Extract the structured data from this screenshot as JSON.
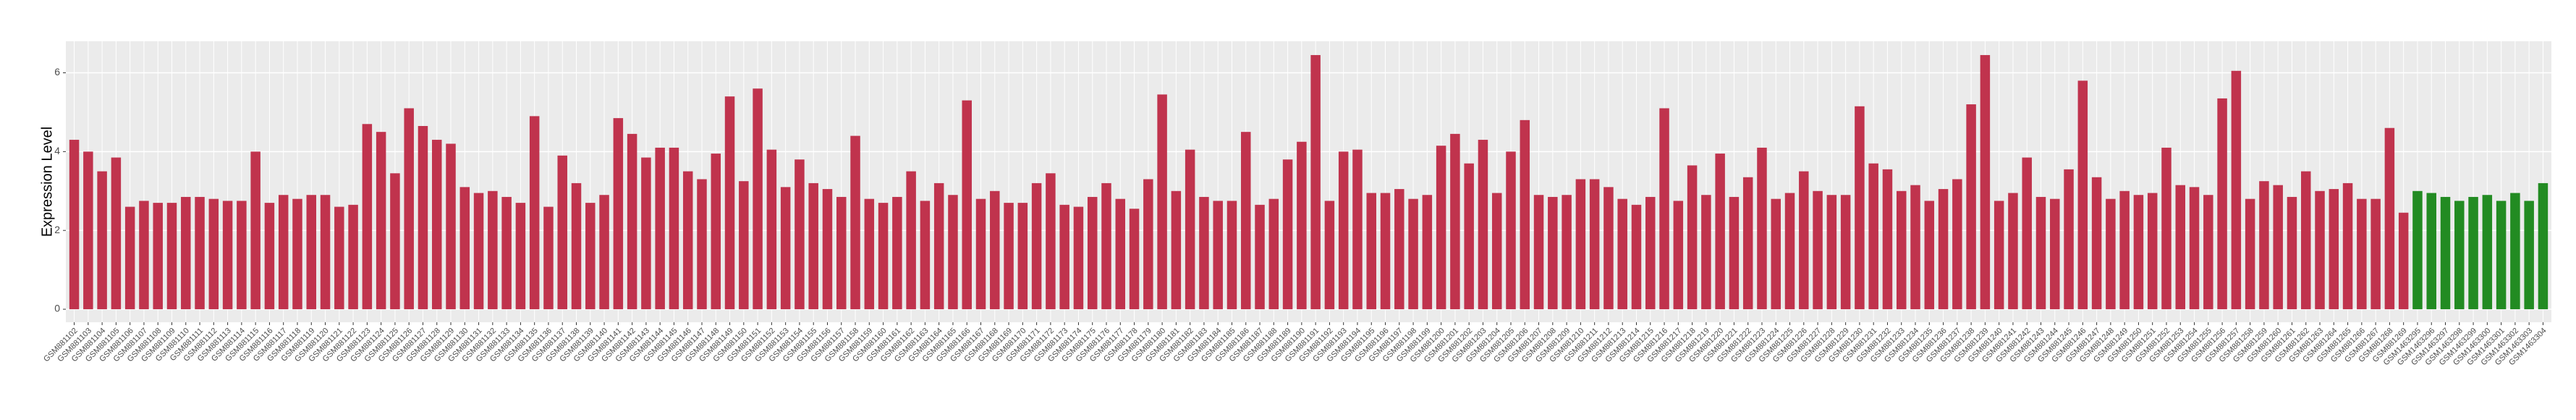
{
  "chart_data": {
    "type": "bar",
    "y_label": "Expression Level",
    "categories": [
      "GSM881102",
      "GSM881103",
      "GSM881104",
      "GSM881105",
      "GSM881106",
      "GSM881107",
      "GSM881108",
      "GSM881109",
      "GSM881110",
      "GSM881111",
      "GSM881112",
      "GSM881113",
      "GSM881114",
      "GSM881115",
      "GSM881116",
      "GSM881117",
      "GSM881118",
      "GSM881119",
      "GSM881120",
      "GSM881121",
      "GSM881122",
      "GSM881123",
      "GSM881124",
      "GSM881125",
      "GSM881126",
      "GSM881127",
      "GSM881128",
      "GSM881129",
      "GSM881130",
      "GSM881131",
      "GSM881132",
      "GSM881133",
      "GSM881134",
      "GSM881135",
      "GSM881136",
      "GSM881137",
      "GSM881138",
      "GSM881139",
      "GSM881140",
      "GSM881141",
      "GSM881142",
      "GSM881143",
      "GSM881144",
      "GSM881145",
      "GSM881146",
      "GSM881147",
      "GSM881148",
      "GSM881149",
      "GSM881150",
      "GSM881151",
      "GSM881152",
      "GSM881153",
      "GSM881154",
      "GSM881155",
      "GSM881156",
      "GSM881157",
      "GSM881158",
      "GSM881159",
      "GSM881160",
      "GSM881161",
      "GSM881162",
      "GSM881163",
      "GSM881164",
      "GSM881165",
      "GSM881166",
      "GSM881167",
      "GSM881168",
      "GSM881169",
      "GSM881170",
      "GSM881171",
      "GSM881172",
      "GSM881173",
      "GSM881174",
      "GSM881175",
      "GSM881176",
      "GSM881177",
      "GSM881178",
      "GSM881179",
      "GSM881180",
      "GSM881181",
      "GSM881182",
      "GSM881183",
      "GSM881184",
      "GSM881185",
      "GSM881186",
      "GSM881187",
      "GSM881188",
      "GSM881189",
      "GSM881190",
      "GSM881191",
      "GSM881192",
      "GSM881193",
      "GSM881194",
      "GSM881195",
      "GSM881196",
      "GSM881197",
      "GSM881198",
      "GSM881199",
      "GSM881200",
      "GSM881201",
      "GSM881202",
      "GSM881203",
      "GSM881204",
      "GSM881205",
      "GSM881206",
      "GSM881207",
      "GSM881208",
      "GSM881209",
      "GSM881210",
      "GSM881211",
      "GSM881212",
      "GSM881213",
      "GSM881214",
      "GSM881215",
      "GSM881216",
      "GSM881217",
      "GSM881218",
      "GSM881219",
      "GSM881220",
      "GSM881221",
      "GSM881222",
      "GSM881223",
      "GSM881224",
      "GSM881225",
      "GSM881226",
      "GSM881227",
      "GSM881228",
      "GSM881229",
      "GSM881230",
      "GSM881231",
      "GSM881232",
      "GSM881233",
      "GSM881234",
      "GSM881235",
      "GSM881236",
      "GSM881237",
      "GSM881238",
      "GSM881239",
      "GSM881240",
      "GSM881241",
      "GSM881242",
      "GSM881243",
      "GSM881244",
      "GSM881245",
      "GSM881246",
      "GSM881247",
      "GSM881248",
      "GSM881249",
      "GSM881250",
      "GSM881251",
      "GSM881252",
      "GSM881253",
      "GSM881254",
      "GSM881255",
      "GSM881256",
      "GSM881257",
      "GSM881258",
      "GSM881259",
      "GSM881260",
      "GSM881261",
      "GSM881262",
      "GSM881263",
      "GSM881264",
      "GSM881265",
      "GSM881266",
      "GSM881267",
      "GSM881268",
      "GSM881269",
      "GSM1463295",
      "GSM1463296",
      "GSM1463297",
      "GSM1463298",
      "GSM1463299",
      "GSM1463300",
      "GSM1463301",
      "GSM1463302",
      "GSM1463303",
      "GSM1463304"
    ],
    "values": [
      4.3,
      4.0,
      3.5,
      3.85,
      2.6,
      2.75,
      2.7,
      2.7,
      2.85,
      2.85,
      2.8,
      2.75,
      2.75,
      4.0,
      2.7,
      2.9,
      2.8,
      2.9,
      2.9,
      2.6,
      2.65,
      4.7,
      4.5,
      3.45,
      5.1,
      4.65,
      4.3,
      4.2,
      3.1,
      2.95,
      3.0,
      2.85,
      2.7,
      4.9,
      2.6,
      3.9,
      3.2,
      2.7,
      2.9,
      4.85,
      4.45,
      3.85,
      4.1,
      4.1,
      3.5,
      3.3,
      3.95,
      5.4,
      3.25,
      5.6,
      4.05,
      3.1,
      3.8,
      3.2,
      3.05,
      2.85,
      4.4,
      2.8,
      2.7,
      2.85,
      3.5,
      2.75,
      3.2,
      2.9,
      5.3,
      2.8,
      3.0,
      2.7,
      2.7,
      3.2,
      3.45,
      2.65,
      2.6,
      2.85,
      3.2,
      2.8,
      2.55,
      3.3,
      5.45,
      3.0,
      4.05,
      2.85,
      2.75,
      2.75,
      4.5,
      2.65,
      2.8,
      3.8,
      4.25,
      6.45,
      2.75,
      4.0,
      4.05,
      2.95,
      2.95,
      3.05,
      2.8,
      2.9,
      4.15,
      4.45,
      3.7,
      4.3,
      2.95,
      4.0,
      4.8,
      2.9,
      2.85,
      2.9,
      3.3,
      3.3,
      3.1,
      2.8,
      2.65,
      2.85,
      5.1,
      2.75,
      3.65,
      2.9,
      3.95,
      2.85,
      3.35,
      4.1,
      2.8,
      2.95,
      3.5,
      3.0,
      2.9,
      2.9,
      5.15,
      3.7,
      3.55,
      3.0,
      3.15,
      2.75,
      3.05,
      3.3,
      5.2,
      6.45,
      2.75,
      2.95,
      3.85,
      2.85,
      2.8,
      3.55,
      5.8,
      3.35,
      2.8,
      3.0,
      2.9,
      2.95,
      4.1,
      3.15,
      3.1,
      2.9,
      5.35,
      6.05,
      2.8,
      3.25,
      3.15,
      2.85,
      3.5,
      3.0,
      3.05,
      3.2,
      2.8,
      2.8,
      4.6,
      2.45,
      3.0,
      2.95,
      2.85,
      2.75,
      2.85,
      2.9,
      2.75,
      2.95,
      2.75,
      3.2
    ],
    "colors": [
      "#c0334d",
      "#c0334d",
      "#c0334d",
      "#c0334d",
      "#c0334d",
      "#c0334d",
      "#c0334d",
      "#c0334d",
      "#c0334d",
      "#c0334d",
      "#c0334d",
      "#c0334d",
      "#c0334d",
      "#c0334d",
      "#c0334d",
      "#c0334d",
      "#c0334d",
      "#c0334d",
      "#c0334d",
      "#c0334d",
      "#c0334d",
      "#c0334d",
      "#c0334d",
      "#c0334d",
      "#c0334d",
      "#c0334d",
      "#c0334d",
      "#c0334d",
      "#c0334d",
      "#c0334d",
      "#c0334d",
      "#c0334d",
      "#c0334d",
      "#c0334d",
      "#c0334d",
      "#c0334d",
      "#c0334d",
      "#c0334d",
      "#c0334d",
      "#c0334d",
      "#c0334d",
      "#c0334d",
      "#c0334d",
      "#c0334d",
      "#c0334d",
      "#c0334d",
      "#c0334d",
      "#c0334d",
      "#c0334d",
      "#c0334d",
      "#c0334d",
      "#c0334d",
      "#c0334d",
      "#c0334d",
      "#c0334d",
      "#c0334d",
      "#c0334d",
      "#c0334d",
      "#c0334d",
      "#c0334d",
      "#c0334d",
      "#c0334d",
      "#c0334d",
      "#c0334d",
      "#c0334d",
      "#c0334d",
      "#c0334d",
      "#c0334d",
      "#c0334d",
      "#c0334d",
      "#c0334d",
      "#c0334d",
      "#c0334d",
      "#c0334d",
      "#c0334d",
      "#c0334d",
      "#c0334d",
      "#c0334d",
      "#c0334d",
      "#c0334d",
      "#c0334d",
      "#c0334d",
      "#c0334d",
      "#c0334d",
      "#c0334d",
      "#c0334d",
      "#c0334d",
      "#c0334d",
      "#c0334d",
      "#c0334d",
      "#c0334d",
      "#c0334d",
      "#c0334d",
      "#c0334d",
      "#c0334d",
      "#c0334d",
      "#c0334d",
      "#c0334d",
      "#c0334d",
      "#c0334d",
      "#c0334d",
      "#c0334d",
      "#c0334d",
      "#c0334d",
      "#c0334d",
      "#c0334d",
      "#c0334d",
      "#c0334d",
      "#c0334d",
      "#c0334d",
      "#c0334d",
      "#c0334d",
      "#c0334d",
      "#c0334d",
      "#c0334d",
      "#c0334d",
      "#c0334d",
      "#c0334d",
      "#c0334d",
      "#c0334d",
      "#c0334d",
      "#c0334d",
      "#c0334d",
      "#c0334d",
      "#c0334d",
      "#c0334d",
      "#c0334d",
      "#c0334d",
      "#c0334d",
      "#c0334d",
      "#c0334d",
      "#c0334d",
      "#c0334d",
      "#c0334d",
      "#c0334d",
      "#c0334d",
      "#c0334d",
      "#c0334d",
      "#c0334d",
      "#c0334d",
      "#c0334d",
      "#c0334d",
      "#c0334d",
      "#c0334d",
      "#c0334d",
      "#c0334d",
      "#c0334d",
      "#c0334d",
      "#c0334d",
      "#c0334d",
      "#c0334d",
      "#c0334d",
      "#c0334d",
      "#c0334d",
      "#c0334d",
      "#c0334d",
      "#c0334d",
      "#c0334d",
      "#c0334d",
      "#c0334d",
      "#c0334d",
      "#c0334d",
      "#c0334d",
      "#c0334d",
      "#c0334d",
      "#c0334d",
      "#c0334d",
      "#c0334d",
      "#228b22",
      "#228b22",
      "#228b22",
      "#228b22",
      "#228b22",
      "#228b22",
      "#228b22",
      "#228b22",
      "#228b22",
      "#228b22"
    ],
    "ylim": [
      -0.33,
      6.8
    ],
    "yticks": [
      0,
      2,
      4,
      6
    ],
    "grid": true
  }
}
